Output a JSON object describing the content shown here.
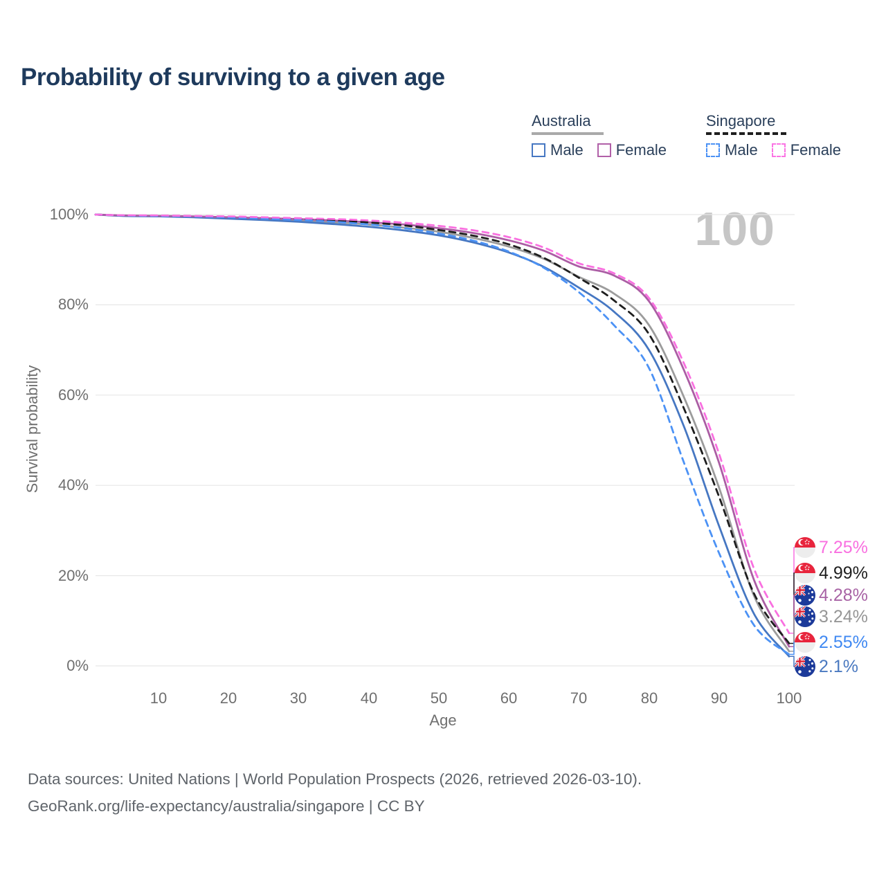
{
  "title": "Probability of surviving to a given age",
  "watermark_age": "100",
  "legend": {
    "groups": [
      {
        "label": "Australia",
        "line": {
          "style": "solid",
          "color": "#a9a9a9"
        },
        "items": [
          {
            "label": "Male",
            "line_style": "solid",
            "color": "#4677c2"
          },
          {
            "label": "Female",
            "line_style": "solid",
            "color": "#b160a8"
          }
        ]
      },
      {
        "label": "Singapore",
        "line": {
          "style": "dashed",
          "color": "#1f1f1f"
        },
        "items": [
          {
            "label": "Male",
            "line_style": "dashed",
            "color": "#4c92f5"
          },
          {
            "label": "Female",
            "line_style": "dashed",
            "color": "#fb74e4"
          }
        ]
      }
    ]
  },
  "axes": {
    "y_title": "Survival probability",
    "x_title": "Age",
    "y_ticks": [
      "100%",
      "80%",
      "60%",
      "40%",
      "20%",
      "0%"
    ],
    "x_ticks": [
      "10",
      "20",
      "30",
      "40",
      "50",
      "60",
      "70",
      "80",
      "90",
      "100"
    ]
  },
  "end_labels": [
    {
      "series": "Singapore Female",
      "value": "7.25%",
      "color": "#f96fe0",
      "flag": "singapore",
      "flag_ref": "#flag-singapore"
    },
    {
      "series": "Singapore Total",
      "value": "4.99%",
      "color": "#1f1f1f",
      "flag": "singapore",
      "flag_ref": "#flag-singapore"
    },
    {
      "series": "Australia Female",
      "value": "4.28%",
      "color": "#a863a5",
      "flag": "australia",
      "flag_ref": "#flag-australia"
    },
    {
      "series": "Australia Total",
      "value": "3.24%",
      "color": "#969696",
      "flag": "australia",
      "flag_ref": "#flag-australia"
    },
    {
      "series": "Singapore Male",
      "value": "2.55%",
      "color": "#3f88f2",
      "flag": "singapore",
      "flag_ref": "#flag-singapore"
    },
    {
      "series": "Australia Male",
      "value": "2.1%",
      "color": "#4a79c0",
      "flag": "australia",
      "flag_ref": "#flag-australia"
    }
  ],
  "footer": {
    "line1": "Data sources: United Nations | World Population Prospects (2026, retrieved 2026-03-10).",
    "line2": "GeoRank.org/life-expectancy/australia/singapore | CC BY"
  },
  "chart_data": {
    "type": "line",
    "title": "Probability of surviving to a given age",
    "xlabel": "Age",
    "ylabel": "Survival probability",
    "xlim": [
      0,
      100
    ],
    "ylim": [
      0,
      100
    ],
    "grid": "horizontal",
    "y_gridlines_pct": [
      100,
      80,
      60,
      40,
      20,
      0
    ],
    "legend_position": "top-right",
    "ages": [
      0,
      5,
      10,
      15,
      20,
      25,
      30,
      35,
      40,
      45,
      50,
      55,
      60,
      65,
      70,
      75,
      80,
      85,
      90,
      95,
      100
    ],
    "series": [
      {
        "id": "au-total",
        "name": "Australia Total",
        "country": "Australia",
        "sex": "Total",
        "color": "#9c9c9c",
        "style": "solid",
        "end_label": "3.24%",
        "values": [
          100,
          99.75,
          99.65,
          99.5,
          99.25,
          99,
          98.7,
          98.3,
          97.8,
          97.1,
          96.2,
          94.8,
          92.9,
          90.2,
          86.2,
          82.5,
          75.5,
          59.5,
          39.5,
          15.5,
          3.24
        ]
      },
      {
        "id": "au-male",
        "name": "Australia Male",
        "country": "Australia",
        "sex": "Male",
        "color": "#4677c2",
        "style": "solid",
        "end_label": "2.1%",
        "values": [
          100,
          99.7,
          99.6,
          99.4,
          99.1,
          98.8,
          98.4,
          97.9,
          97.3,
          96.5,
          95.4,
          93.8,
          91.6,
          88.4,
          83.8,
          78.5,
          70,
          53,
          31,
          11.5,
          2.1
        ]
      },
      {
        "id": "au-female",
        "name": "Australia Female",
        "country": "Australia",
        "sex": "Female",
        "color": "#ab5da4",
        "style": "solid",
        "end_label": "4.28%",
        "values": [
          100,
          99.8,
          99.7,
          99.6,
          99.4,
          99.2,
          99,
          98.7,
          98.3,
          97.8,
          97,
          95.9,
          94.3,
          92,
          88.5,
          86.5,
          80.8,
          65.5,
          45,
          19,
          4.28
        ]
      },
      {
        "id": "sg-total",
        "name": "Singapore Total",
        "country": "Singapore",
        "sex": "Total",
        "color": "#1e1e1e",
        "style": "dashed",
        "end_label": "4.99%",
        "values": [
          100,
          99.8,
          99.75,
          99.65,
          99.5,
          99.25,
          99,
          98.7,
          98.25,
          97.6,
          96.6,
          95.3,
          93.4,
          90.4,
          86,
          81,
          73.5,
          57,
          37.5,
          16,
          4.99
        ]
      },
      {
        "id": "sg-male",
        "name": "Singapore Male",
        "country": "Singapore",
        "sex": "Male",
        "color": "#4c92f5",
        "style": "dashed",
        "end_label": "2.55%",
        "values": [
          100,
          99.8,
          99.7,
          99.6,
          99.4,
          99.1,
          98.8,
          98.4,
          97.8,
          97,
          95.8,
          94.2,
          91.8,
          88.2,
          82.8,
          75.5,
          66,
          45,
          25,
          9,
          2.55
        ]
      },
      {
        "id": "sg-female",
        "name": "Singapore Female",
        "country": "Singapore",
        "sex": "Female",
        "color": "#f96fe0",
        "style": "dashed",
        "end_label": "7.25%",
        "values": [
          100,
          99.85,
          99.8,
          99.7,
          99.6,
          99.4,
          99.2,
          99,
          98.7,
          98.2,
          97.5,
          96.5,
          95,
          92.7,
          89.2,
          87,
          81.5,
          67,
          47,
          21.5,
          7.25
        ]
      }
    ]
  }
}
